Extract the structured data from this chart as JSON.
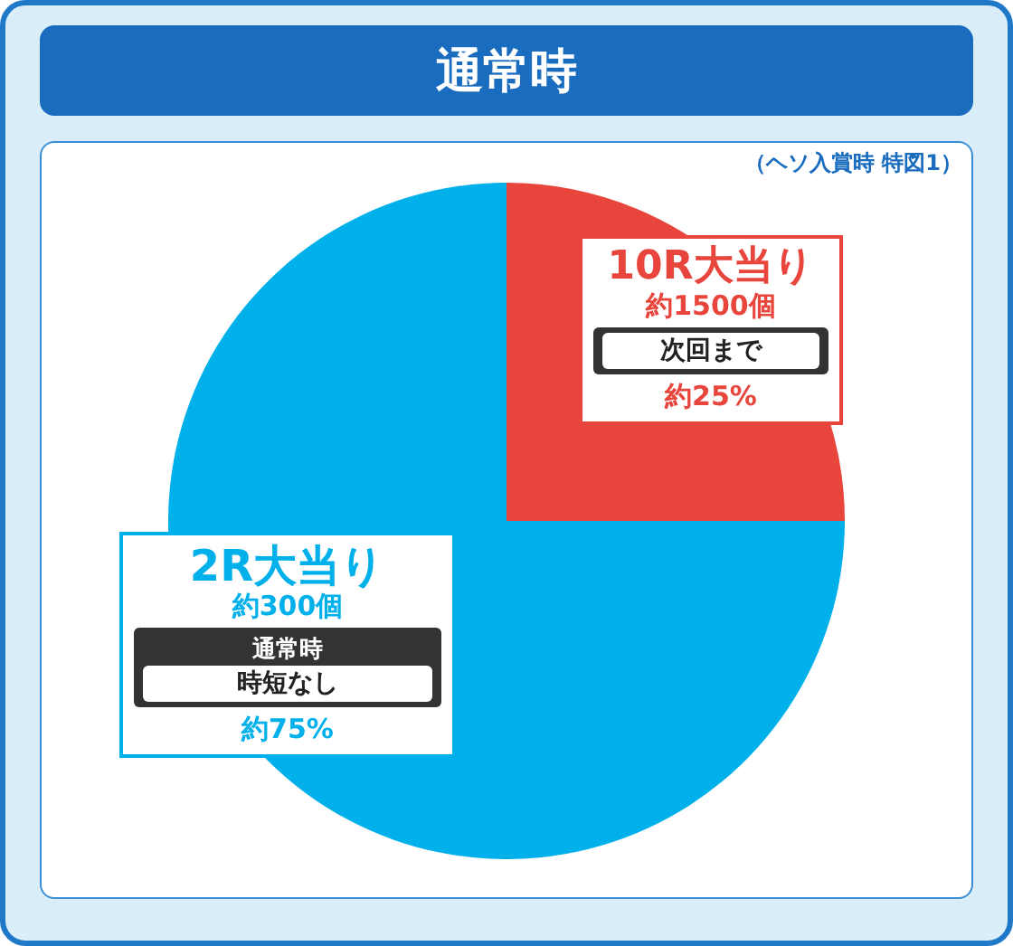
{
  "chart_data": {
    "type": "pie",
    "title": "通常時",
    "categories": [
      "10R大当り",
      "2R大当り"
    ],
    "values": [
      25,
      75
    ],
    "colors": [
      "#e8453c",
      "#00b0eb"
    ],
    "value_labels": [
      "約25%",
      "約75%"
    ],
    "annotations": [
      "（ヘソ入賞時 特図1）",
      "約1500個",
      "次回まで",
      "約300個",
      "通常時",
      "時短なし"
    ]
  }
}
